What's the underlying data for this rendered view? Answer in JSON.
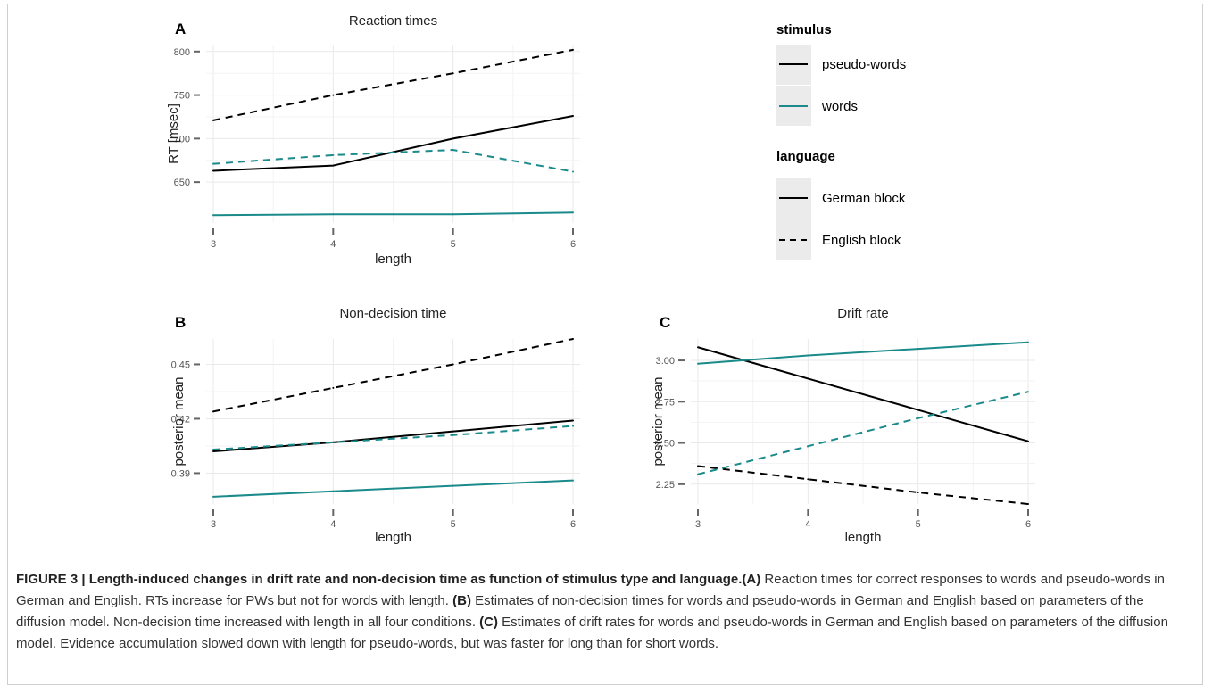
{
  "legend": {
    "stimulus_title": "stimulus",
    "stimulus_items": [
      {
        "label": "pseudo-words",
        "color": "#000000"
      },
      {
        "label": "words",
        "color": "#1a8a8a"
      }
    ],
    "language_title": "language",
    "language_items": [
      {
        "label": "German block",
        "dash": "solid"
      },
      {
        "label": "English block",
        "dash": "dashed"
      }
    ]
  },
  "colors": {
    "pseudo_words": "#000000",
    "words": "#1a8a8a",
    "grid": "#e9e9e9"
  },
  "chart_data": [
    {
      "panel": "A",
      "type": "line",
      "title": "Reaction times",
      "xlabel": "length",
      "ylabel": "RT [msec]",
      "x": [
        3,
        4,
        5,
        6
      ],
      "xlim": [
        3,
        6
      ],
      "ylim": [
        603,
        808
      ],
      "yticks": [
        650,
        700,
        750,
        800
      ],
      "ytick_labels": [
        "650",
        "700",
        "750",
        "800"
      ],
      "grid": true,
      "series": [
        {
          "name": "pseudo-words",
          "language": "German block",
          "values": [
            663,
            669,
            700,
            726
          ]
        },
        {
          "name": "pseudo-words",
          "language": "English block",
          "values": [
            721,
            750,
            775,
            802
          ]
        },
        {
          "name": "words",
          "language": "German block",
          "values": [
            612,
            613,
            613,
            615
          ]
        },
        {
          "name": "words",
          "language": "English block",
          "values": [
            671,
            681,
            687,
            662
          ]
        }
      ]
    },
    {
      "panel": "B",
      "type": "line",
      "title": "Non-decision time",
      "xlabel": "length",
      "ylabel": "posterior mean",
      "x": [
        3,
        4,
        5,
        6
      ],
      "xlim": [
        3,
        6
      ],
      "ylim": [
        0.373,
        0.464
      ],
      "yticks": [
        0.39,
        0.42,
        0.45
      ],
      "ytick_labels": [
        "0.39",
        "0.42",
        "0.45"
      ],
      "grid": true,
      "series": [
        {
          "name": "pseudo-words",
          "language": "German block",
          "values": [
            0.402,
            0.407,
            0.413,
            0.419
          ]
        },
        {
          "name": "pseudo-words",
          "language": "English block",
          "values": [
            0.424,
            0.437,
            0.45,
            0.464
          ]
        },
        {
          "name": "words",
          "language": "German block",
          "values": [
            0.377,
            0.38,
            0.383,
            0.386
          ]
        },
        {
          "name": "words",
          "language": "English block",
          "values": [
            0.403,
            0.407,
            0.411,
            0.416
          ]
        }
      ]
    },
    {
      "panel": "C",
      "type": "line",
      "title": "Drift rate",
      "xlabel": "length",
      "ylabel": "posterior mean",
      "x": [
        3,
        4,
        5,
        6
      ],
      "xlim": [
        3,
        6
      ],
      "ylim": [
        2.13,
        3.13
      ],
      "yticks": [
        2.25,
        2.5,
        2.75,
        3.0
      ],
      "ytick_labels": [
        "2.25",
        "2.50",
        "2.75",
        "3.00"
      ],
      "grid": true,
      "series": [
        {
          "name": "pseudo-words",
          "language": "German block",
          "values": [
            3.08,
            2.89,
            2.7,
            2.51
          ]
        },
        {
          "name": "pseudo-words",
          "language": "English block",
          "values": [
            2.36,
            2.28,
            2.2,
            2.13
          ]
        },
        {
          "name": "words",
          "language": "German block",
          "values": [
            2.98,
            3.03,
            3.07,
            3.11
          ]
        },
        {
          "name": "words",
          "language": "English block",
          "values": [
            2.31,
            2.48,
            2.65,
            2.81
          ]
        }
      ]
    }
  ],
  "caption": {
    "label": "FIGURE 3 | Length-induced changes in drift rate and non-decision time as function of stimulus type and language.",
    "a_tag": "(A)",
    "a_text": " Reaction times for correct responses to words and pseudo-words in German and English. RTs increase for PWs but not for words with length. ",
    "b_tag": "(B)",
    "b_text": " Estimates of non-decision times for words and pseudo-words in German and English based on parameters of the diffusion model. Non-decision time increased with length in all four conditions. ",
    "c_tag": "(C)",
    "c_text": " Estimates of drift rates for words and pseudo-words in German and English based on parameters of the diffusion model. Evidence accumulation slowed down with length for pseudo-words, but was faster for long than for short words."
  }
}
